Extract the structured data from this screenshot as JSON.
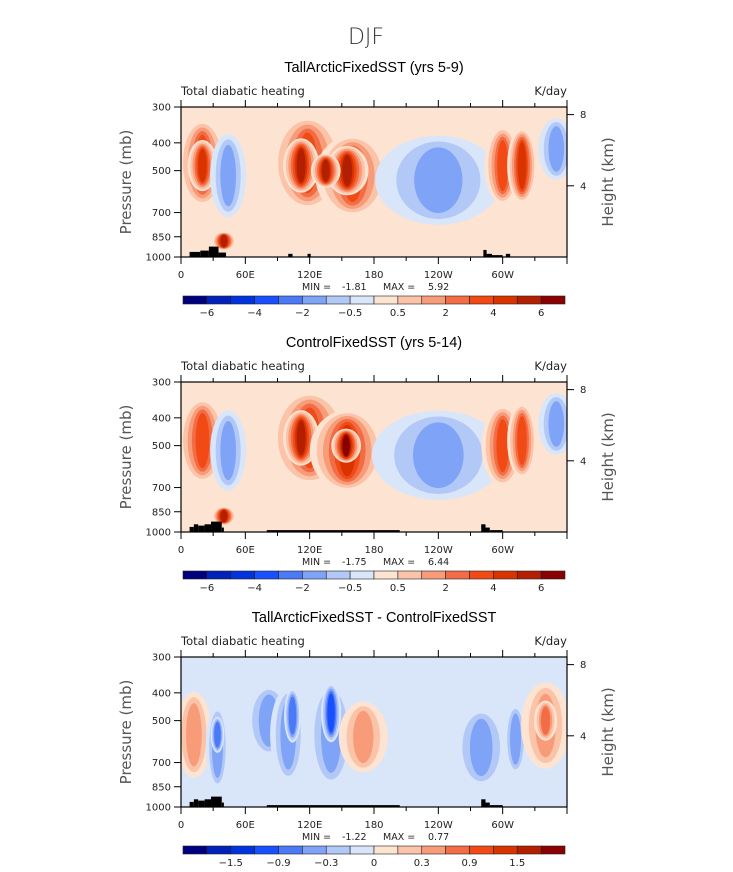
{
  "figure_title": "DJF",
  "palette": [
    "#00007f",
    "#0022bb",
    "#0033dd",
    "#1a4fff",
    "#4a7af5",
    "#7fa3f7",
    "#b2c8f7",
    "#d9e6fa",
    "#fde3d2",
    "#fbc3a8",
    "#f79b78",
    "#f26d45",
    "#f24a14",
    "#d93400",
    "#b32000",
    "#8b0000"
  ],
  "land_color": "#000000",
  "chart_data": [
    {
      "type": "heatmap",
      "title": "TallArcticFixedSST (yrs 5-9)",
      "left_string": "Total diabatic heating",
      "right_string": "K/day",
      "xlabel": "",
      "ylabel": "Pressure (mb)",
      "y2label": "Height (km)",
      "x_ticks": [
        "0",
        "60E",
        "120E",
        "180",
        "120W",
        "60W"
      ],
      "x_range_deg": [
        0,
        360
      ],
      "y_ticks": [
        "300",
        "400",
        "500",
        "700",
        "850",
        "1000"
      ],
      "y_range_mb": [
        1000,
        300
      ],
      "y2_ticks": [
        "8",
        "4"
      ],
      "min_label": "MIN =",
      "min_value": "-1.81",
      "max_label": "MAX =",
      "max_value": "5.92",
      "colorbar_levels": [
        -7,
        -6,
        -5,
        -4,
        -3,
        -2,
        -1,
        -0.5,
        0,
        0.5,
        1,
        2,
        3,
        4,
        5,
        6,
        7
      ],
      "colorbar_tick_labels": [
        "-6",
        "-4",
        "-2",
        "-0.5",
        "0.5",
        "2",
        "4",
        "6"
      ],
      "colorbar_tick_bounds": [
        1,
        3,
        5,
        7,
        9,
        11,
        13,
        15
      ],
      "features": [
        {
          "lon": 20,
          "p": 470,
          "wlon": 14,
          "hp": 250,
          "level": 12
        },
        {
          "lon": 20,
          "p": 480,
          "wlon": 8,
          "hp": 150,
          "level": 13
        },
        {
          "lon": 44,
          "p": 520,
          "wlon": 10,
          "hp": 270,
          "level": 5
        },
        {
          "lon": 40,
          "p": 880,
          "wlon": 6,
          "hp": 80,
          "level": 14
        },
        {
          "lon": 118,
          "p": 470,
          "wlon": 22,
          "hp": 270,
          "level": 12
        },
        {
          "lon": 112,
          "p": 480,
          "wlon": 10,
          "hp": 160,
          "level": 14
        },
        {
          "lon": 160,
          "p": 520,
          "wlon": 22,
          "hp": 260,
          "level": 12
        },
        {
          "lon": 155,
          "p": 500,
          "wlon": 12,
          "hp": 150,
          "level": 14
        },
        {
          "lon": 135,
          "p": 500,
          "wlon": 8,
          "hp": 100,
          "level": 14
        },
        {
          "lon": 240,
          "p": 540,
          "wlon": 38,
          "hp": 300,
          "level": 5
        },
        {
          "lon": 300,
          "p": 480,
          "wlon": 10,
          "hp": 230,
          "level": 12
        },
        {
          "lon": 318,
          "p": 480,
          "wlon": 8,
          "hp": 220,
          "level": 13
        },
        {
          "lon": 350,
          "p": 420,
          "wlon": 10,
          "hp": 160,
          "level": 5
        }
      ]
    },
    {
      "type": "heatmap",
      "title": "ControlFixedSST (yrs 5-14)",
      "left_string": "Total diabatic heating",
      "right_string": "K/day",
      "xlabel": "",
      "ylabel": "Pressure (mb)",
      "y2label": "Height (km)",
      "x_ticks": [
        "0",
        "60E",
        "120E",
        "180",
        "120W",
        "60W"
      ],
      "x_range_deg": [
        0,
        360
      ],
      "y_ticks": [
        "300",
        "400",
        "500",
        "700",
        "850",
        "1000"
      ],
      "y_range_mb": [
        1000,
        300
      ],
      "y2_ticks": [
        "8",
        "4"
      ],
      "min_label": "MIN =",
      "min_value": "-1.75",
      "max_label": "MAX =",
      "max_value": "6.44",
      "colorbar_levels": [
        -7,
        -6,
        -5,
        -4,
        -3,
        -2,
        -1,
        -0.5,
        0,
        0.5,
        1,
        2,
        3,
        4,
        5,
        6,
        7
      ],
      "colorbar_tick_labels": [
        "-6",
        "-4",
        "-2",
        "-0.5",
        "0.5",
        "2",
        "4",
        "6"
      ],
      "colorbar_tick_bounds": [
        1,
        3,
        5,
        7,
        9,
        11,
        13,
        15
      ],
      "features": [
        {
          "lon": 20,
          "p": 480,
          "wlon": 14,
          "hp": 250,
          "level": 12
        },
        {
          "lon": 44,
          "p": 520,
          "wlon": 10,
          "hp": 260,
          "level": 5
        },
        {
          "lon": 40,
          "p": 880,
          "wlon": 6,
          "hp": 80,
          "level": 14
        },
        {
          "lon": 120,
          "p": 470,
          "wlon": 24,
          "hp": 270,
          "level": 12
        },
        {
          "lon": 112,
          "p": 470,
          "wlon": 10,
          "hp": 160,
          "level": 14
        },
        {
          "lon": 155,
          "p": 520,
          "wlon": 22,
          "hp": 260,
          "level": 13
        },
        {
          "lon": 154,
          "p": 500,
          "wlon": 8,
          "hp": 100,
          "level": 15
        },
        {
          "lon": 240,
          "p": 540,
          "wlon": 40,
          "hp": 300,
          "level": 5
        },
        {
          "lon": 300,
          "p": 500,
          "wlon": 12,
          "hp": 250,
          "level": 12
        },
        {
          "lon": 318,
          "p": 480,
          "wlon": 8,
          "hp": 220,
          "level": 12
        },
        {
          "lon": 350,
          "p": 420,
          "wlon": 10,
          "hp": 160,
          "level": 5
        }
      ]
    },
    {
      "type": "heatmap",
      "title": "TallArcticFixedSST - ControlFixedSST",
      "left_string": "Total diabatic heating",
      "right_string": "K/day",
      "xlabel": "",
      "ylabel": "Pressure (mb)",
      "y2label": "Height (km)",
      "x_ticks": [
        "0",
        "60E",
        "120E",
        "180",
        "120W",
        "60W"
      ],
      "x_range_deg": [
        0,
        360
      ],
      "y_ticks": [
        "300",
        "400",
        "500",
        "700",
        "850",
        "1000"
      ],
      "y_range_mb": [
        1000,
        300
      ],
      "y2_ticks": [
        "8",
        "4"
      ],
      "min_label": "MIN =",
      "min_value": "-1.22",
      "max_label": "MAX =",
      "max_value": "0.77",
      "colorbar_levels": [
        -2.1,
        -1.8,
        -1.5,
        -1.2,
        -0.9,
        -0.6,
        -0.3,
        -0.15,
        0,
        0.15,
        0.3,
        0.6,
        0.9,
        1.2,
        1.5,
        1.8,
        2.1
      ],
      "colorbar_tick_labels": [
        "-1.5",
        "-0.9",
        "-0.3",
        "0",
        "0.3",
        "0.9",
        "1.5"
      ],
      "colorbar_tick_bounds": [
        2,
        4,
        6,
        8,
        10,
        12,
        14
      ],
      "features": [
        {
          "lon": 12,
          "p": 560,
          "wlon": 10,
          "hp": 300,
          "level": 10
        },
        {
          "lon": 34,
          "p": 620,
          "wlon": 6,
          "hp": 320,
          "level": 5
        },
        {
          "lon": 34,
          "p": 560,
          "wlon": 3,
          "hp": 120,
          "level": 4
        },
        {
          "lon": 82,
          "p": 500,
          "wlon": 14,
          "hp": 220,
          "level": 5
        },
        {
          "lon": 100,
          "p": 560,
          "wlon": 10,
          "hp": 330,
          "level": 5
        },
        {
          "lon": 104,
          "p": 480,
          "wlon": 4,
          "hp": 160,
          "level": 4
        },
        {
          "lon": 140,
          "p": 560,
          "wlon": 14,
          "hp": 360,
          "level": 5
        },
        {
          "lon": 140,
          "p": 470,
          "wlon": 5,
          "hp": 170,
          "level": 3
        },
        {
          "lon": 170,
          "p": 570,
          "wlon": 14,
          "hp": 250,
          "level": 10
        },
        {
          "lon": 280,
          "p": 620,
          "wlon": 16,
          "hp": 300,
          "level": 5
        },
        {
          "lon": 312,
          "p": 580,
          "wlon": 6,
          "hp": 250,
          "level": 5
        },
        {
          "lon": 340,
          "p": 520,
          "wlon": 14,
          "hp": 280,
          "level": 10
        },
        {
          "lon": 340,
          "p": 500,
          "wlon": 6,
          "hp": 120,
          "level": 11
        }
      ]
    }
  ]
}
